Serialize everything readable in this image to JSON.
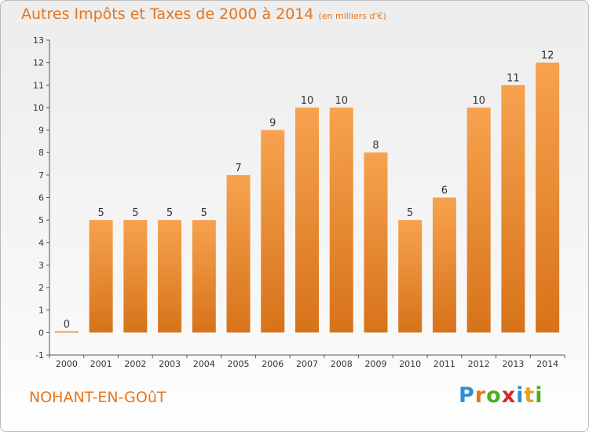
{
  "header": {
    "title": "Autres Impôts et Taxes de 2000 à 2014",
    "unit": "(en milliers d'€)"
  },
  "footer": {
    "commune": "NOHANT-EN-GOûT",
    "logo": {
      "text": "Proxiti",
      "letter_colors": [
        "#2f8fd1",
        "#e8751a",
        "#4caf1f",
        "#d6252a",
        "#2f8fd1",
        "#e8a11a",
        "#4caf1f"
      ]
    }
  },
  "colors": {
    "bar_light": "#f7a24f",
    "bar_dark": "#d7731a",
    "accent": "#e8751a"
  },
  "chart_data": {
    "type": "bar",
    "title": "Autres Impôts et Taxes de 2000 à 2014",
    "subtitle": "(en milliers d'€)",
    "categories": [
      "2000",
      "2001",
      "2002",
      "2003",
      "2004",
      "2005",
      "2006",
      "2007",
      "2008",
      "2009",
      "2010",
      "2011",
      "2012",
      "2013",
      "2014"
    ],
    "values": [
      0,
      5,
      5,
      5,
      5,
      7,
      9,
      10,
      10,
      8,
      5,
      6,
      10,
      11,
      12
    ],
    "data_labels": [
      "0",
      "5",
      "5",
      "5",
      "5",
      "7",
      "9",
      "10",
      "10",
      "8",
      "5",
      "6",
      "10",
      "11",
      "12"
    ],
    "y_ticks": [
      "-1",
      "0",
      "1",
      "2",
      "3",
      "4",
      "5",
      "6",
      "7",
      "8",
      "9",
      "10",
      "11",
      "12",
      "13"
    ],
    "ylim": [
      -1,
      13
    ],
    "grid": false,
    "legend": "none"
  }
}
